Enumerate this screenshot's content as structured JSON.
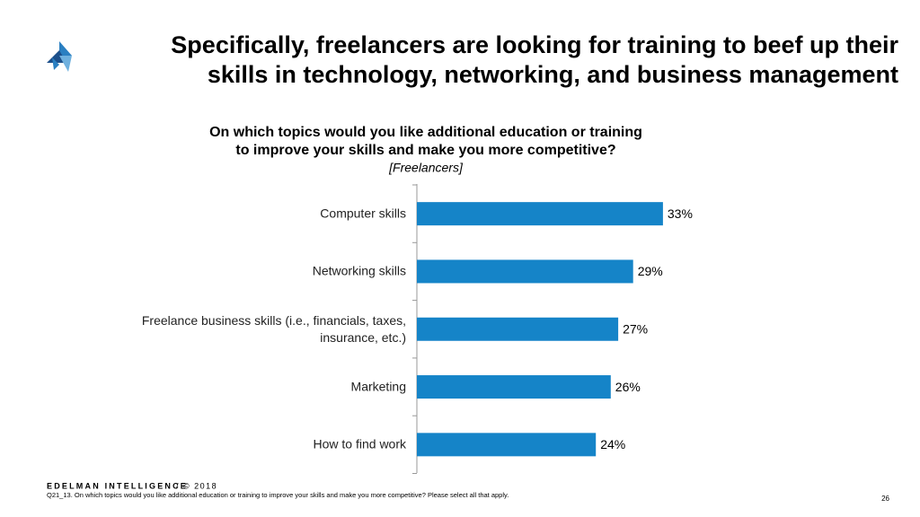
{
  "slide": {
    "title": [
      "Specifically, freelancers are looking for training to beef up their",
      "skills in technology, networking, and business management"
    ],
    "footer": {
      "brand": "EDELMAN INTELLIGENCE",
      "copyright": "/ © 2018",
      "note": "Q21_13.  On which topics would you like additional education or training to improve your skills and make you more competitive? Please select all that apply.",
      "page": "26"
    }
  },
  "chart_data": {
    "type": "bar",
    "orientation": "horizontal",
    "title": [
      "On which topics would you like additional education or training",
      "to improve your skills and make you more competitive?"
    ],
    "subtitle": "[Freelancers]",
    "categories": [
      "Computer skills",
      "Networking skills",
      "Freelance business skills (i.e., financials, taxes, insurance, etc.)",
      "Marketing",
      "How to find work"
    ],
    "values": [
      33,
      29,
      27,
      26,
      24
    ],
    "value_labels": [
      "33%",
      "29%",
      "27%",
      "26%",
      "24%"
    ],
    "color": "#1584c8"
  }
}
